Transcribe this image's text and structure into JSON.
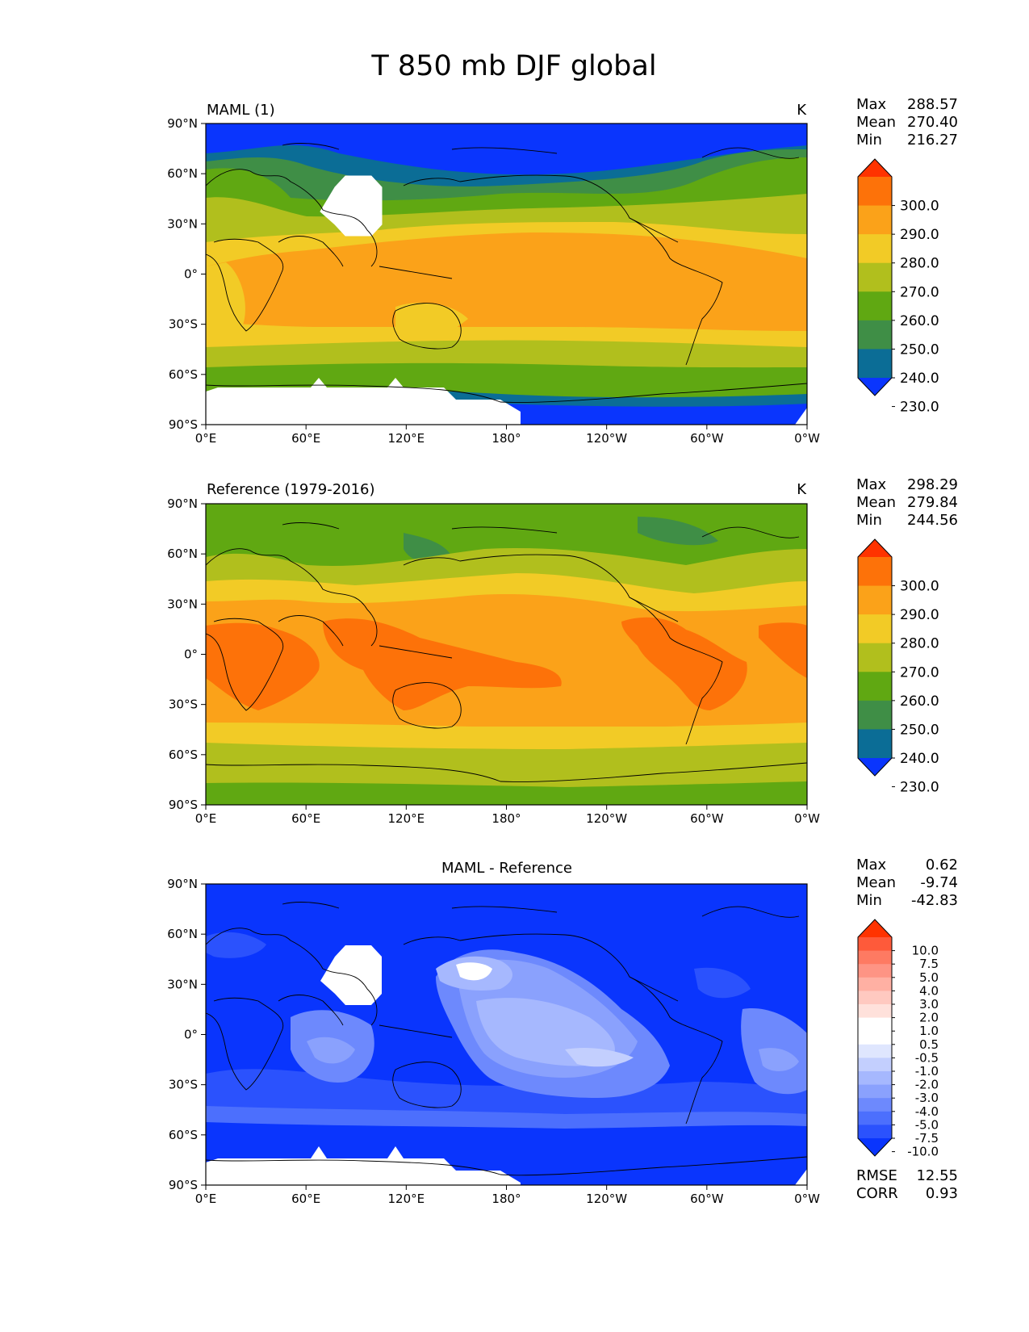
{
  "figure": {
    "title": "T 850 mb DJF global"
  },
  "lat_ticks": [
    "90°N",
    "60°N",
    "30°N",
    "0°",
    "30°S",
    "60°S",
    "90°S"
  ],
  "lon_ticks": [
    "0°E",
    "60°E",
    "120°E",
    "180°",
    "120°W",
    "60°W",
    "0°W"
  ],
  "panels": [
    {
      "id": "test",
      "title_left": "MAML (1)",
      "title_center": "",
      "units": "K",
      "stats": [
        {
          "label": "Max",
          "value": "288.57"
        },
        {
          "label": "Mean",
          "value": "270.40"
        },
        {
          "label": "Min",
          "value": "216.27"
        }
      ],
      "colorbar": {
        "labels": [
          "300.0",
          "290.0",
          "280.0",
          "270.0",
          "260.0",
          "250.0",
          "240.0",
          "230.0"
        ],
        "colors": [
          "#ff3300",
          "#fd7209",
          "#fba219",
          "#f2cb26",
          "#b1bf1d",
          "#60a812",
          "#3f8e46",
          "#0b6d96",
          "#0a35fd"
        ]
      }
    },
    {
      "id": "reference",
      "title_left": "Reference (1979-2016)",
      "title_center": "",
      "units": "K",
      "stats": [
        {
          "label": "Max",
          "value": "298.29"
        },
        {
          "label": "Mean",
          "value": "279.84"
        },
        {
          "label": "Min",
          "value": "244.56"
        }
      ],
      "colorbar": {
        "labels": [
          "300.0",
          "290.0",
          "280.0",
          "270.0",
          "260.0",
          "250.0",
          "240.0",
          "230.0"
        ],
        "colors": [
          "#ff3300",
          "#fd7209",
          "#fba219",
          "#f2cb26",
          "#b1bf1d",
          "#60a812",
          "#3f8e46",
          "#0b6d96",
          "#0a35fd"
        ]
      }
    },
    {
      "id": "diff",
      "title_left": "",
      "title_center": "MAML - Reference",
      "units": "",
      "stats": [
        {
          "label": "Max",
          "value": "0.62"
        },
        {
          "label": "Mean",
          "value": "-9.74"
        },
        {
          "label": "Min",
          "value": "-42.83"
        }
      ],
      "extra_stats": [
        {
          "label": "RMSE",
          "value": "12.55"
        },
        {
          "label": "CORR",
          "value": "0.93"
        }
      ],
      "colorbar": {
        "labels": [
          "10.0",
          "7.5",
          "5.0",
          "4.0",
          "3.0",
          "2.0",
          "1.0",
          "0.5",
          "-0.5",
          "-1.0",
          "-2.0",
          "-3.0",
          "-4.0",
          "-5.0",
          "-7.5",
          "-10.0"
        ],
        "colors": [
          "#ff3300",
          "#fe5a3a",
          "#fe7a62",
          "#fe9484",
          "#ffb0a3",
          "#ffc9c0",
          "#ffe1db",
          "#ffffff",
          "#ffffff",
          "#dfe6fe",
          "#c3cffe",
          "#a6b8fe",
          "#8aa1fd",
          "#6d89fd",
          "#4c6ffd",
          "#2b52fd",
          "#0a35fd"
        ]
      }
    }
  ],
  "map_colors": {
    "ocean_white": "#ffffff",
    "coast": "#000000"
  }
}
